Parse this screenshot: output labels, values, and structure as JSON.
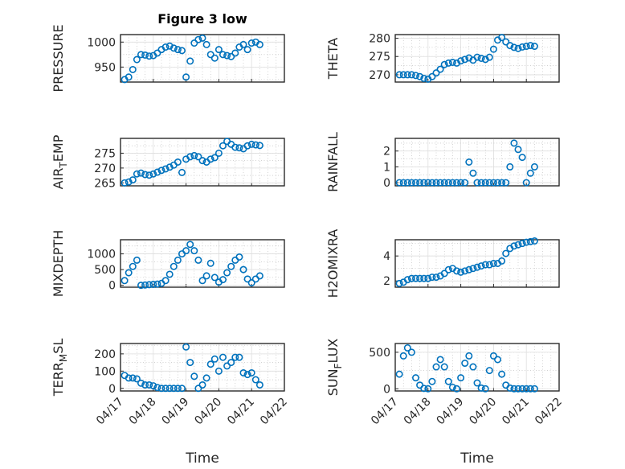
{
  "figure": {
    "title": "Figure 3 low",
    "xlabel": "Time",
    "marker_color": "#0072bd",
    "x_ticks": [
      "04/17",
      "04/18",
      "04/19",
      "04/20",
      "04/21",
      "04/22"
    ]
  },
  "chart_data": [
    {
      "id": "pressure",
      "type": "scatter",
      "ylabel": "PRESSURE",
      "ylabel_sub": "",
      "xlim": [
        "04/17",
        "04/22"
      ],
      "ylim": [
        920,
        1015
      ],
      "yticks": [
        950,
        1000
      ],
      "x": [
        "04/17 03:00",
        "04/17 06:00",
        "04/17 09:00",
        "04/17 12:00",
        "04/17 15:00",
        "04/17 18:00",
        "04/17 21:00",
        "04/18 00:00",
        "04/18 03:00",
        "04/18 06:00",
        "04/18 09:00",
        "04/18 12:00",
        "04/18 15:00",
        "04/18 18:00",
        "04/18 21:00",
        "04/19 00:00",
        "04/19 03:00",
        "04/19 06:00",
        "04/19 09:00",
        "04/19 12:00",
        "04/19 15:00",
        "04/19 18:00",
        "04/19 21:00",
        "04/20 00:00",
        "04/20 03:00",
        "04/20 06:00",
        "04/20 09:00",
        "04/20 12:00",
        "04/20 15:00",
        "04/20 18:00",
        "04/20 21:00",
        "04/21 00:00",
        "04/21 03:00",
        "04/21 06:00"
      ],
      "y": [
        925,
        930,
        945,
        965,
        975,
        974,
        972,
        973,
        978,
        985,
        990,
        992,
        988,
        985,
        983,
        930,
        962,
        998,
        1005,
        1008,
        995,
        975,
        968,
        985,
        975,
        973,
        971,
        978,
        990,
        995,
        985,
        998,
        1000,
        995
      ]
    },
    {
      "id": "theta",
      "type": "scatter",
      "ylabel": "THETA",
      "ylabel_sub": "",
      "xlim": [
        "04/17",
        "04/22"
      ],
      "ylim": [
        268,
        281
      ],
      "yticks": [
        270,
        275,
        280
      ],
      "x": [
        "04/17 03:00",
        "04/17 06:00",
        "04/17 09:00",
        "04/17 12:00",
        "04/17 15:00",
        "04/17 18:00",
        "04/17 21:00",
        "04/18 00:00",
        "04/18 03:00",
        "04/18 06:00",
        "04/18 09:00",
        "04/18 12:00",
        "04/18 15:00",
        "04/18 18:00",
        "04/18 21:00",
        "04/19 00:00",
        "04/19 03:00",
        "04/19 06:00",
        "04/19 09:00",
        "04/19 12:00",
        "04/19 15:00",
        "04/19 18:00",
        "04/19 21:00",
        "04/20 00:00",
        "04/20 03:00",
        "04/20 06:00",
        "04/20 09:00",
        "04/20 12:00",
        "04/20 15:00",
        "04/20 18:00",
        "04/20 21:00",
        "04/21 00:00",
        "04/21 03:00",
        "04/21 06:00"
      ],
      "y": [
        270,
        270,
        270,
        270,
        269.8,
        269.5,
        269,
        268.8,
        269.5,
        270.5,
        271.5,
        272.8,
        273.2,
        273.4,
        273.2,
        273.8,
        274.2,
        274.6,
        274,
        274.8,
        274.5,
        274.2,
        274.8,
        277,
        279.5,
        280.2,
        279,
        278,
        277.5,
        277.2,
        277.6,
        277.8,
        278,
        277.8
      ]
    },
    {
      "id": "air_temp",
      "type": "scatter",
      "ylabel": "AIR",
      "ylabel_sub": "T",
      "ylabel_suffix": "EMP",
      "xlim": [
        "04/17",
        "04/22"
      ],
      "ylim": [
        264,
        280
      ],
      "yticks": [
        265,
        270,
        275
      ],
      "x": [
        "04/17 03:00",
        "04/17 06:00",
        "04/17 09:00",
        "04/17 12:00",
        "04/17 15:00",
        "04/17 18:00",
        "04/17 21:00",
        "04/18 00:00",
        "04/18 03:00",
        "04/18 06:00",
        "04/18 09:00",
        "04/18 12:00",
        "04/18 15:00",
        "04/18 18:00",
        "04/18 21:00",
        "04/19 00:00",
        "04/19 03:00",
        "04/19 06:00",
        "04/19 09:00",
        "04/19 12:00",
        "04/19 15:00",
        "04/19 18:00",
        "04/19 21:00",
        "04/20 00:00",
        "04/20 03:00",
        "04/20 06:00",
        "04/20 09:00",
        "04/20 12:00",
        "04/20 15:00",
        "04/20 18:00",
        "04/20 21:00",
        "04/21 00:00",
        "04/21 03:00",
        "04/21 06:00"
      ],
      "y": [
        265,
        265.3,
        266,
        268,
        268.3,
        267.8,
        267.6,
        268,
        268.6,
        269.2,
        269.7,
        270.3,
        271,
        272,
        268.5,
        273,
        273.8,
        274.2,
        273.8,
        272.5,
        272,
        273,
        273.5,
        275,
        277.5,
        279,
        278,
        277,
        276.8,
        276.5,
        277.5,
        278,
        277.8,
        277.6
      ]
    },
    {
      "id": "rainfall",
      "type": "scatter",
      "ylabel": "RAINFALL",
      "ylabel_sub": "",
      "xlim": [
        "04/17",
        "04/22"
      ],
      "ylim": [
        -0.2,
        2.8
      ],
      "yticks": [
        0,
        1,
        2
      ],
      "x": [
        "04/17 03:00",
        "04/17 06:00",
        "04/17 09:00",
        "04/17 12:00",
        "04/17 15:00",
        "04/17 18:00",
        "04/17 21:00",
        "04/18 00:00",
        "04/18 03:00",
        "04/18 06:00",
        "04/18 09:00",
        "04/18 12:00",
        "04/18 15:00",
        "04/18 18:00",
        "04/18 21:00",
        "04/19 00:00",
        "04/19 03:00",
        "04/19 06:00",
        "04/19 09:00",
        "04/19 12:00",
        "04/19 15:00",
        "04/19 18:00",
        "04/19 21:00",
        "04/20 00:00",
        "04/20 03:00",
        "04/20 06:00",
        "04/20 09:00",
        "04/20 12:00",
        "04/20 15:00",
        "04/20 18:00",
        "04/20 21:00",
        "04/21 00:00",
        "04/21 03:00",
        "04/21 06:00"
      ],
      "y": [
        0,
        0,
        0,
        0,
        0,
        0,
        0,
        0,
        0,
        0,
        0,
        0,
        0,
        0,
        0,
        0,
        0,
        1.3,
        0.6,
        0,
        0,
        0,
        0,
        0,
        0,
        0,
        0,
        1,
        2.5,
        2.1,
        1.6,
        0,
        0.6,
        1
      ]
    },
    {
      "id": "mixdepth",
      "type": "scatter",
      "ylabel": "MIXDEPTH",
      "ylabel_sub": "",
      "xlim": [
        "04/17",
        "04/22"
      ],
      "ylim": [
        -60,
        1450
      ],
      "yticks": [
        0,
        500,
        1000
      ],
      "x": [
        "04/17 03:00",
        "04/17 06:00",
        "04/17 09:00",
        "04/17 12:00",
        "04/17 15:00",
        "04/17 18:00",
        "04/17 21:00",
        "04/18 00:00",
        "04/18 03:00",
        "04/18 06:00",
        "04/18 09:00",
        "04/18 12:00",
        "04/18 15:00",
        "04/18 18:00",
        "04/18 21:00",
        "04/19 00:00",
        "04/19 03:00",
        "04/19 06:00",
        "04/19 09:00",
        "04/19 12:00",
        "04/19 15:00",
        "04/19 18:00",
        "04/19 21:00",
        "04/20 00:00",
        "04/20 03:00",
        "04/20 06:00",
        "04/20 09:00",
        "04/20 12:00",
        "04/20 15:00",
        "04/20 18:00",
        "04/20 21:00",
        "04/21 00:00",
        "04/21 03:00",
        "04/21 06:00"
      ],
      "y": [
        150,
        400,
        600,
        800,
        0,
        10,
        20,
        30,
        40,
        60,
        150,
        350,
        600,
        800,
        1000,
        1100,
        1300,
        1100,
        800,
        150,
        300,
        700,
        250,
        100,
        180,
        400,
        600,
        800,
        900,
        500,
        200,
        80,
        200,
        300
      ]
    },
    {
      "id": "h2omixra",
      "type": "scatter",
      "ylabel": "H2OMIXRA",
      "ylabel_sub": "",
      "xlim": [
        "04/17",
        "04/22"
      ],
      "ylim": [
        1.5,
        5.3
      ],
      "yticks": [
        2,
        4
      ],
      "x": [
        "04/17 03:00",
        "04/17 06:00",
        "04/17 09:00",
        "04/17 12:00",
        "04/17 15:00",
        "04/17 18:00",
        "04/17 21:00",
        "04/18 00:00",
        "04/18 03:00",
        "04/18 06:00",
        "04/18 09:00",
        "04/18 12:00",
        "04/18 15:00",
        "04/18 18:00",
        "04/18 21:00",
        "04/19 00:00",
        "04/19 03:00",
        "04/19 06:00",
        "04/19 09:00",
        "04/19 12:00",
        "04/19 15:00",
        "04/19 18:00",
        "04/19 21:00",
        "04/20 00:00",
        "04/20 03:00",
        "04/20 06:00",
        "04/20 09:00",
        "04/20 12:00",
        "04/20 15:00",
        "04/20 18:00",
        "04/20 21:00",
        "04/21 00:00",
        "04/21 03:00",
        "04/21 06:00"
      ],
      "y": [
        1.8,
        1.9,
        2.1,
        2.2,
        2.2,
        2.2,
        2.2,
        2.2,
        2.3,
        2.3,
        2.4,
        2.6,
        2.9,
        3.0,
        2.8,
        2.7,
        2.8,
        2.9,
        3.0,
        3.1,
        3.2,
        3.3,
        3.3,
        3.4,
        3.4,
        3.6,
        4.2,
        4.6,
        4.8,
        4.9,
        5.0,
        5.1,
        5.15,
        5.2
      ]
    },
    {
      "id": "terr_msl",
      "type": "scatter",
      "ylabel": "TERR",
      "ylabel_sub": "M",
      "ylabel_suffix": "SL",
      "xlim": [
        "04/17",
        "04/22"
      ],
      "ylim": [
        -15,
        260
      ],
      "yticks": [
        0,
        100,
        200
      ],
      "x": [
        "04/17 03:00",
        "04/17 06:00",
        "04/17 09:00",
        "04/17 12:00",
        "04/17 15:00",
        "04/17 18:00",
        "04/17 21:00",
        "04/18 00:00",
        "04/18 03:00",
        "04/18 06:00",
        "04/18 09:00",
        "04/18 12:00",
        "04/18 15:00",
        "04/18 18:00",
        "04/18 21:00",
        "04/19 00:00",
        "04/19 03:00",
        "04/19 06:00",
        "04/19 09:00",
        "04/19 12:00",
        "04/19 15:00",
        "04/19 18:00",
        "04/19 21:00",
        "04/20 00:00",
        "04/20 03:00",
        "04/20 06:00",
        "04/20 09:00",
        "04/20 12:00",
        "04/20 15:00",
        "04/20 18:00",
        "04/20 21:00",
        "04/21 00:00",
        "04/21 03:00",
        "04/21 06:00"
      ],
      "y": [
        75,
        60,
        60,
        55,
        30,
        20,
        20,
        15,
        5,
        0,
        0,
        0,
        0,
        0,
        0,
        240,
        150,
        70,
        0,
        20,
        60,
        140,
        170,
        100,
        180,
        130,
        150,
        180,
        180,
        90,
        80,
        90,
        50,
        20
      ]
    },
    {
      "id": "sun_flux",
      "type": "scatter",
      "ylabel": "SUN",
      "ylabel_sub": "F",
      "ylabel_suffix": "LUX",
      "xlim": [
        "04/17",
        "04/22"
      ],
      "ylim": [
        -30,
        620
      ],
      "yticks": [
        0,
        500
      ],
      "x": [
        "04/17 03:00",
        "04/17 06:00",
        "04/17 09:00",
        "04/17 12:00",
        "04/17 15:00",
        "04/17 18:00",
        "04/17 21:00",
        "04/18 00:00",
        "04/18 03:00",
        "04/18 06:00",
        "04/18 09:00",
        "04/18 12:00",
        "04/18 15:00",
        "04/18 18:00",
        "04/18 21:00",
        "04/19 00:00",
        "04/19 03:00",
        "04/19 06:00",
        "04/19 09:00",
        "04/19 12:00",
        "04/19 15:00",
        "04/19 18:00",
        "04/19 21:00",
        "04/20 00:00",
        "04/20 03:00",
        "04/20 06:00",
        "04/20 09:00",
        "04/20 12:00",
        "04/20 15:00",
        "04/20 18:00",
        "04/20 21:00",
        "04/21 00:00",
        "04/21 03:00",
        "04/21 06:00"
      ],
      "y": [
        200,
        450,
        560,
        500,
        150,
        50,
        5,
        0,
        100,
        300,
        400,
        300,
        100,
        20,
        0,
        150,
        350,
        450,
        300,
        80,
        10,
        0,
        250,
        450,
        400,
        200,
        50,
        10,
        0,
        0,
        0,
        0,
        0,
        0
      ]
    }
  ]
}
